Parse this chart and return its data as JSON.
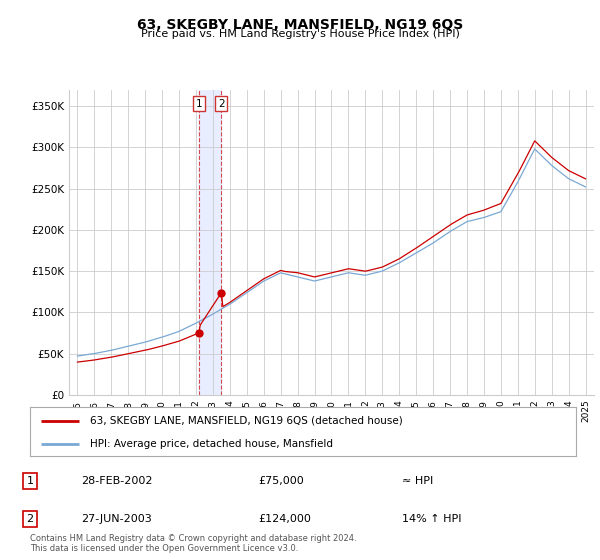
{
  "title": "63, SKEGBY LANE, MANSFIELD, NG19 6QS",
  "subtitle": "Price paid vs. HM Land Registry's House Price Index (HPI)",
  "legend_line1": "63, SKEGBY LANE, MANSFIELD, NG19 6QS (detached house)",
  "legend_line2": "HPI: Average price, detached house, Mansfield",
  "transaction1_label": "1",
  "transaction1_date": "28-FEB-2002",
  "transaction1_price": "£75,000",
  "transaction1_hpi": "≈ HPI",
  "transaction2_label": "2",
  "transaction2_date": "27-JUN-2003",
  "transaction2_price": "£124,000",
  "transaction2_hpi": "14% ↑ HPI",
  "footnote": "Contains HM Land Registry data © Crown copyright and database right 2024.\nThis data is licensed under the Open Government Licence v3.0.",
  "red_color": "#cc0000",
  "blue_color": "#7aa8d4",
  "highlight_color": "#e8eeff",
  "grid_color": "#cccccc",
  "background_color": "#ffffff",
  "ylim": [
    0,
    370000
  ],
  "yticks": [
    0,
    50000,
    100000,
    150000,
    200000,
    250000,
    300000,
    350000
  ],
  "ytick_labels": [
    "£0",
    "£50K",
    "£100K",
    "£150K",
    "£200K",
    "£250K",
    "£300K",
    "£350K"
  ],
  "transaction1_x": 2002.16,
  "transaction1_y": 75000,
  "transaction2_x": 2003.49,
  "transaction2_y": 124000,
  "xlim_start": 1994.5,
  "xlim_end": 2025.5,
  "xticks": [
    1995,
    1996,
    1997,
    1998,
    1999,
    2000,
    2001,
    2002,
    2003,
    2004,
    2005,
    2006,
    2007,
    2008,
    2009,
    2010,
    2011,
    2012,
    2013,
    2014,
    2015,
    2016,
    2017,
    2018,
    2019,
    2020,
    2021,
    2022,
    2023,
    2024,
    2025
  ]
}
